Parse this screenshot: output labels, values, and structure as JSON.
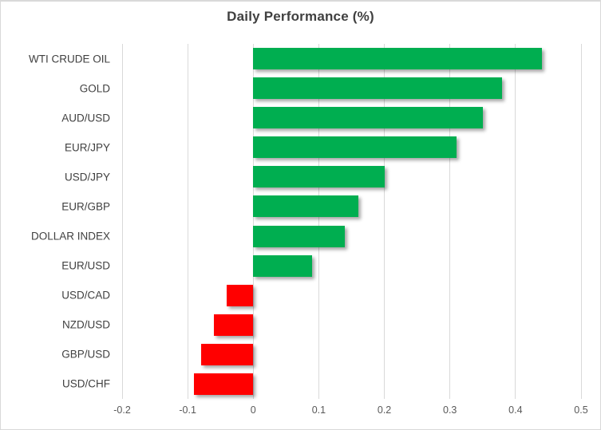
{
  "window": {
    "background_color": "#ffffff",
    "border_color": "#d9d9d9"
  },
  "chart_data": {
    "type": "bar",
    "orientation": "horizontal",
    "title": "Daily Performance (%)",
    "categories": [
      "WTI CRUDE OIL",
      "GOLD",
      "AUD/USD",
      "EUR/JPY",
      "USD/JPY",
      "EUR/GBP",
      "DOLLAR INDEX",
      "EUR/USD",
      "USD/CAD",
      "NZD/USD",
      "GBP/USD",
      "USD/CHF"
    ],
    "values": [
      0.44,
      0.38,
      0.35,
      0.31,
      0.2,
      0.16,
      0.14,
      0.09,
      -0.04,
      -0.06,
      -0.08,
      -0.09
    ],
    "xlabel": "",
    "ylabel": "",
    "xlim": [
      -0.2,
      0.5
    ],
    "x_ticks": [
      -0.2,
      -0.1,
      0,
      0.1,
      0.2,
      0.3,
      0.4,
      0.5
    ],
    "x_tick_labels": [
      "-0.2",
      "-0.1",
      "0",
      "0.1",
      "0.2",
      "0.3",
      "0.4",
      "0.5"
    ],
    "grid": true,
    "legend": false,
    "positive_color": "#00ae50",
    "negative_color": "#ff0000",
    "gridline_color": "#d9d9d9",
    "title_color": "#404040",
    "category_label_color": "#404040",
    "tick_label_color": "#595959"
  }
}
